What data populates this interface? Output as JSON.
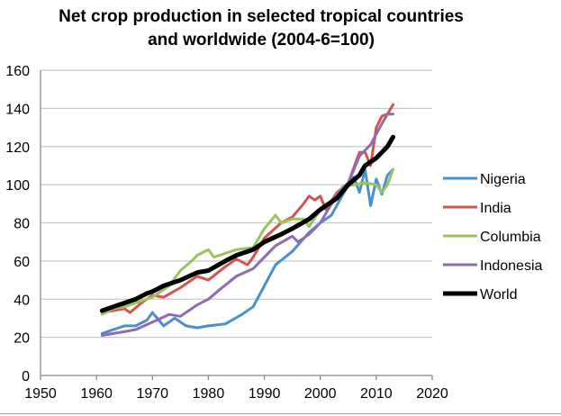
{
  "chart_data": {
    "type": "line",
    "title": "Net crop production in selected tropical countries and worldwide (2004-6=100)",
    "xlabel": "",
    "ylabel": "",
    "xlim": [
      1950,
      2020
    ],
    "ylim": [
      0,
      160
    ],
    "xticks": [
      1950,
      1960,
      1970,
      1980,
      1990,
      2000,
      2010,
      2020
    ],
    "yticks": [
      0,
      20,
      40,
      60,
      80,
      100,
      120,
      140,
      160
    ],
    "grid": "horizontal",
    "legend": "right",
    "series": [
      {
        "name": "Nigeria",
        "color": "#4a8fcf",
        "width": 3,
        "x": [
          1961,
          1963,
          1965,
          1967,
          1969,
          1970,
          1972,
          1974,
          1976,
          1978,
          1980,
          1983,
          1986,
          1988,
          1990,
          1992,
          1995,
          1998,
          2000,
          2002,
          2005,
          2006,
          2007,
          2008,
          2009,
          2010,
          2011,
          2012,
          2013
        ],
        "y": [
          22,
          24,
          26,
          26,
          29,
          33,
          26,
          30,
          26,
          25,
          26,
          27,
          32,
          36,
          47,
          58,
          65,
          75,
          80,
          84,
          100,
          104,
          96,
          108,
          89,
          103,
          95,
          105,
          108
        ]
      },
      {
        "name": "India",
        "color": "#d0554f",
        "width": 3,
        "x": [
          1961,
          1963,
          1965,
          1966,
          1968,
          1970,
          1972,
          1975,
          1978,
          1980,
          1983,
          1985,
          1987,
          1988,
          1990,
          1993,
          1995,
          1997,
          1998,
          1999,
          2000,
          2001,
          2003,
          2005,
          2007,
          2008,
          2009,
          2010,
          2011,
          2012,
          2013
        ],
        "y": [
          33,
          34,
          35,
          33,
          38,
          42,
          41,
          46,
          52,
          50,
          57,
          61,
          58,
          62,
          72,
          80,
          83,
          90,
          94,
          92,
          94,
          87,
          96,
          101,
          117,
          117,
          110,
          130,
          136,
          137,
          142
        ]
      },
      {
        "name": "Columbia",
        "color": "#9bc35c",
        "width": 3,
        "x": [
          1961,
          1963,
          1965,
          1967,
          1970,
          1973,
          1975,
          1977,
          1978,
          1980,
          1981,
          1983,
          1985,
          1988,
          1990,
          1992,
          1993,
          1995,
          1997,
          1998,
          2000,
          2002,
          2004,
          2006,
          2008,
          2010,
          2011,
          2012,
          2013
        ],
        "y": [
          32,
          35,
          36,
          38,
          41,
          47,
          55,
          60,
          63,
          66,
          62,
          64,
          66,
          67,
          77,
          84,
          80,
          82,
          82,
          78,
          87,
          90,
          99,
          100,
          101,
          100,
          96,
          100,
          108
        ]
      },
      {
        "name": "Indonesia",
        "color": "#8e6bb4",
        "width": 3,
        "x": [
          1961,
          1963,
          1965,
          1967,
          1970,
          1973,
          1975,
          1978,
          1980,
          1982,
          1985,
          1988,
          1990,
          1992,
          1995,
          1996,
          1998,
          2000,
          2003,
          2005,
          2007,
          2009,
          2011,
          2012,
          2013
        ],
        "y": [
          21,
          22,
          23,
          24,
          28,
          32,
          31,
          37,
          40,
          45,
          52,
          56,
          62,
          68,
          73,
          70,
          74,
          80,
          95,
          101,
          115,
          121,
          132,
          137,
          137
        ]
      },
      {
        "name": "World",
        "color": "#000000",
        "width": 5,
        "x": [
          1961,
          1963,
          1965,
          1967,
          1969,
          1970,
          1972,
          1975,
          1978,
          1980,
          1983,
          1985,
          1988,
          1990,
          1993,
          1995,
          1998,
          2000,
          2003,
          2005,
          2007,
          2008,
          2010,
          2012,
          2013
        ],
        "y": [
          34,
          36,
          38,
          40,
          43,
          44,
          47,
          50,
          54,
          55,
          60,
          63,
          66,
          70,
          74,
          77,
          82,
          87,
          93,
          100,
          105,
          110,
          114,
          120,
          125
        ]
      }
    ]
  }
}
